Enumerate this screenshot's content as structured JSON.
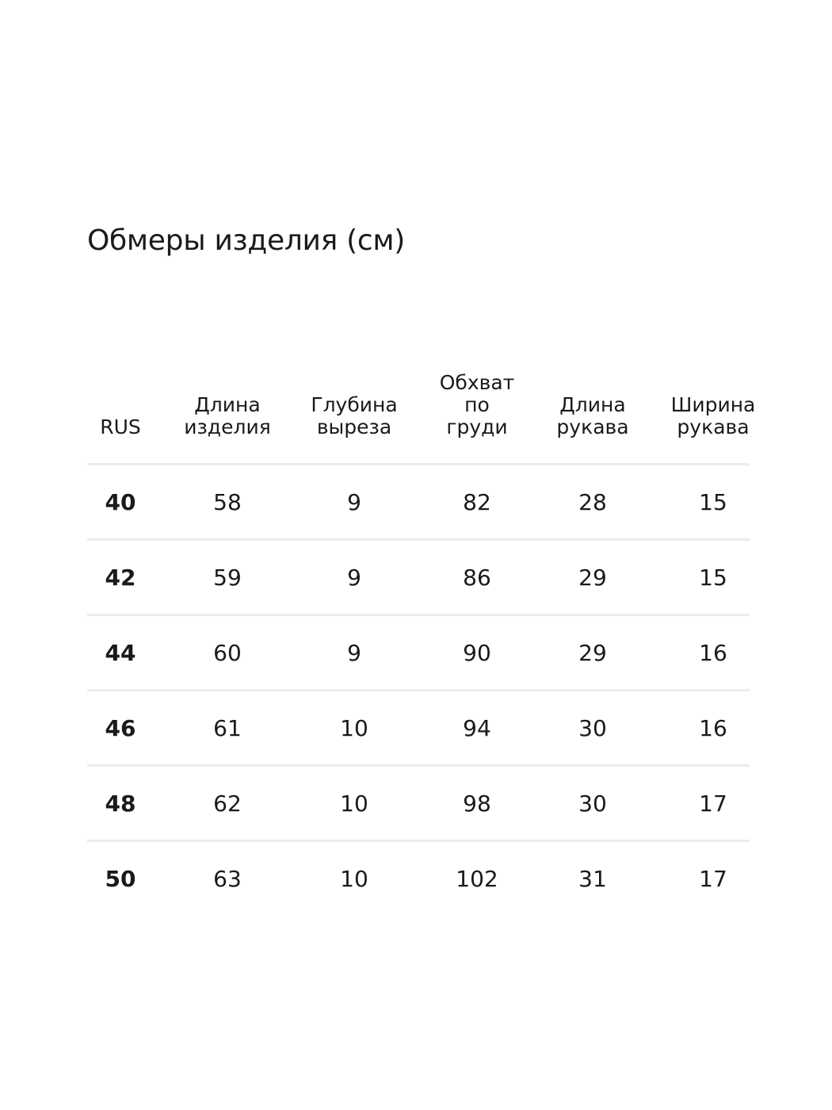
{
  "title": "Обмеры изделия (см)",
  "table": {
    "headers": [
      "RUS",
      "Длина\nизделия",
      "Глубина\nвыреза",
      "Обхват\nпо\nгруди",
      "Длина\nрукава",
      "Ширина\nрукава"
    ],
    "rows": [
      [
        "40",
        "58",
        "9",
        "82",
        "28",
        "15"
      ],
      [
        "42",
        "59",
        "9",
        "86",
        "29",
        "15"
      ],
      [
        "44",
        "60",
        "9",
        "90",
        "29",
        "16"
      ],
      [
        "46",
        "61",
        "10",
        "94",
        "30",
        "16"
      ],
      [
        "48",
        "62",
        "10",
        "98",
        "30",
        "17"
      ],
      [
        "50",
        "63",
        "10",
        "102",
        "31",
        "17"
      ]
    ]
  },
  "colors": {
    "text": "#1a1a1a",
    "divider": "#ececec",
    "background": "#ffffff"
  }
}
